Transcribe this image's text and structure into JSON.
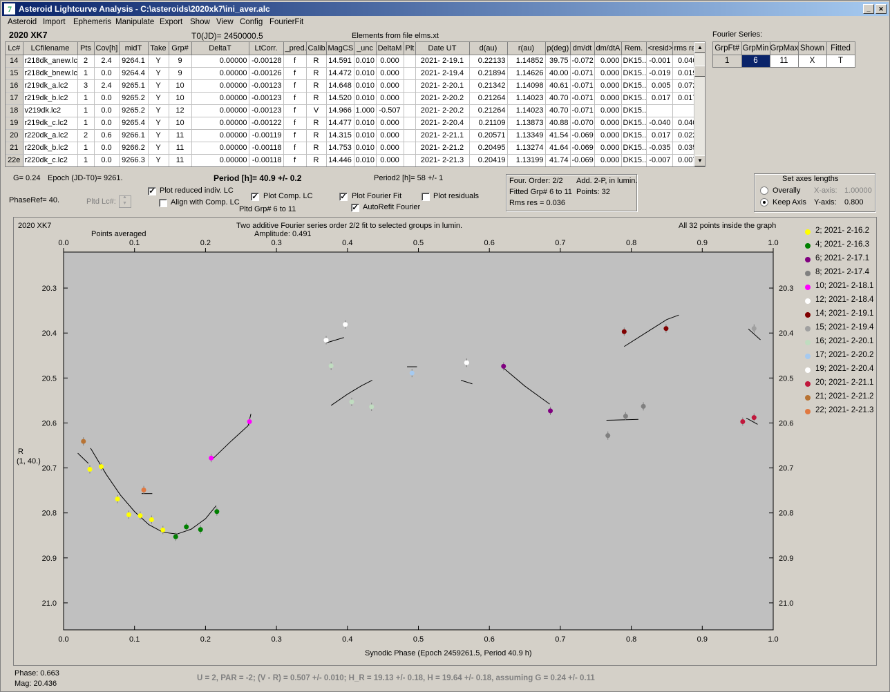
{
  "window": {
    "title": "Asteroid Lightcurve Analysis - C:\\asteroids\\2020xk7\\ini_aver.alc",
    "icon": "app-logo-icon"
  },
  "menu": [
    "Asteroid",
    "Import",
    "Ephemeris",
    "Manipulate",
    "Export",
    "Show",
    "View",
    "Config",
    "FourierFit"
  ],
  "header": {
    "asteroid": "2020 XK7",
    "t0": "T0(JD)= 2450000.5",
    "elements": "Elements from file elms.xt",
    "fourier_title": "Fourier Series:"
  },
  "table": {
    "columns": [
      "Lc#",
      "LCfilename",
      "Pts",
      "Cov[h]",
      "midT",
      "Take",
      "Grp#",
      "DeltaT",
      "LtCorr.",
      "_pred.",
      "Calib.",
      "MagCS",
      "_unc",
      "DeltaM",
      "Plt",
      "Date UT",
      "d(au)",
      "r(au)",
      "p(deg)",
      "dm/dt",
      "dm/dtA",
      "Rem.",
      "<resid>",
      "rms res"
    ],
    "rows": [
      [
        "14",
        "r218dk_anew.lc2",
        "2",
        "2.4",
        "9264.1",
        "Y",
        "9",
        "0.00000",
        "-0.00128",
        "f",
        "R",
        "14.591",
        "0.010",
        "0.000",
        "",
        "2021- 2-19.1",
        "0.22133",
        "1.14852",
        "39.75",
        "-0.072",
        "0.000",
        "DK15...",
        "-0.001",
        "0.040"
      ],
      [
        "15",
        "r218dk_bnew.lc2",
        "1",
        "0.0",
        "9264.4",
        "Y",
        "9",
        "0.00000",
        "-0.00126",
        "f",
        "R",
        "14.472",
        "0.010",
        "0.000",
        "",
        "2021- 2-19.4",
        "0.21894",
        "1.14626",
        "40.00",
        "-0.071",
        "0.000",
        "DK15...",
        "-0.019",
        "0.019"
      ],
      [
        "16",
        "r219dk_a.lc2",
        "3",
        "2.4",
        "9265.1",
        "Y",
        "10",
        "0.00000",
        "-0.00123",
        "f",
        "R",
        "14.648",
        "0.010",
        "0.000",
        "",
        "2021- 2-20.1",
        "0.21342",
        "1.14098",
        "40.61",
        "-0.071",
        "0.000",
        "DK15...",
        "0.005",
        "0.072"
      ],
      [
        "17",
        "r219dk_b.lc2",
        "1",
        "0.0",
        "9265.2",
        "Y",
        "10",
        "0.00000",
        "-0.00123",
        "f",
        "R",
        "14.520",
        "0.010",
        "0.000",
        "",
        "2021- 2-20.2",
        "0.21264",
        "1.14023",
        "40.70",
        "-0.071",
        "0.000",
        "DK15...",
        "0.017",
        "0.017"
      ],
      [
        "18",
        "v219dk.lc2",
        "1",
        "0.0",
        "9265.2",
        "Y",
        "12",
        "0.00000",
        "-0.00123",
        "f",
        "V",
        "14.966",
        "1.000",
        "-0.507",
        "",
        "2021- 2-20.2",
        "0.21264",
        "1.14023",
        "40.70",
        "-0.071",
        "0.000",
        "DK15...",
        "",
        ""
      ],
      [
        "19",
        "r219dk_c.lc2",
        "1",
        "0.0",
        "9265.4",
        "Y",
        "10",
        "0.00000",
        "-0.00122",
        "f",
        "R",
        "14.477",
        "0.010",
        "0.000",
        "",
        "2021- 2-20.4",
        "0.21109",
        "1.13873",
        "40.88",
        "-0.070",
        "0.000",
        "DK15...",
        "-0.040",
        "0.040"
      ],
      [
        "20",
        "r220dk_a.lc2",
        "2",
        "0.6",
        "9266.1",
        "Y",
        "11",
        "0.00000",
        "-0.00119",
        "f",
        "R",
        "14.315",
        "0.010",
        "0.000",
        "",
        "2021- 2-21.1",
        "0.20571",
        "1.13349",
        "41.54",
        "-0.069",
        "0.000",
        "DK15...",
        "0.017",
        "0.022"
      ],
      [
        "21",
        "r220dk_b.lc2",
        "1",
        "0.0",
        "9266.2",
        "Y",
        "11",
        "0.00000",
        "-0.00118",
        "f",
        "R",
        "14.753",
        "0.010",
        "0.000",
        "",
        "2021- 2-21.2",
        "0.20495",
        "1.13274",
        "41.64",
        "-0.069",
        "0.000",
        "DK15...",
        "-0.035",
        "0.035"
      ],
      [
        "22e",
        "r220dk_c.lc2",
        "1",
        "0.0",
        "9266.3",
        "Y",
        "11",
        "0.00000",
        "-0.00118",
        "f",
        "R",
        "14.446",
        "0.010",
        "0.000",
        "",
        "2021- 2-21.3",
        "0.20419",
        "1.13199",
        "41.74",
        "-0.069",
        "0.000",
        "DK15...",
        "-0.007",
        "0.007"
      ]
    ]
  },
  "fourier_table": {
    "columns": [
      "GrpFt#",
      "GrpMin",
      "GrpMax",
      "Shown",
      "Fitted"
    ],
    "row": [
      "1",
      "6",
      "11",
      "X",
      "T"
    ]
  },
  "controls": {
    "g": "G= 0.24",
    "epoch": "Epoch (JD-T0)= 9261.",
    "period": "Period [h]= 40.9 +/- 0.2",
    "period2": "Period2 [h]= 58 +/- 1",
    "phaseref": "PhaseRef= 40.",
    "pltd_lc": "Pltd Lc#:",
    "plot_reduced": "Plot reduced indiv. LC",
    "align": "Align with Comp. LC",
    "plot_comp": "Plot Comp. LC",
    "pltd_grp": "Pltd Grp#  6   to    11",
    "plot_fourier": "Plot Fourier Fit",
    "autorefit": "AutoRefit Fourier",
    "plot_residuals": "Plot residuals",
    "checks": {
      "plot_reduced": true,
      "align": false,
      "plot_comp": true,
      "plot_fourier": true,
      "autorefit": true,
      "plot_residuals": false
    }
  },
  "fit_info": {
    "order": "Four. Order:  2/2",
    "add": "Add. 2-P, in lumin.",
    "fitted": "Fitted Grp# 6 to 11",
    "points": "Points: 32",
    "rms": "Rms res     = 0.036"
  },
  "axes_box": {
    "title": "Set axes lengths",
    "overally": "Overally",
    "keep": "Keep Axis",
    "xaxis_label": "X-axis:",
    "xaxis_val": "1.00000",
    "yaxis_label": "Y-axis:",
    "yaxis_val": "0.800",
    "selected": "keep"
  },
  "status": {
    "phase": "Phase:  0.663",
    "mag": "Mag:    20.436",
    "bottom": "U = 2, PAR = -2; (V - R) = 0.507 +/- 0.010; H_R = 19.13 +/- 0.18, H = 19.64 +/- 0.18, assuming G = 0.24 +/- 0.11"
  },
  "chart_data": {
    "type": "scatter",
    "object_label": "2020 XK7",
    "title": "Two additive Fourier series order 2/2 fit to selected groups in lumin.",
    "subtitle": "Amplitude: 0.491",
    "top_left_note": "Points averaged",
    "top_right_note": "All 32 points inside the graph",
    "xlabel": "Synodic Phase (Epoch 2459261.5, Period 40.9 h)",
    "ylabel": "R",
    "ylabel2": "(1, 40.)",
    "xlim": [
      0,
      1
    ],
    "ylim": [
      21.06,
      20.22
    ],
    "xticks": [
      "0.0",
      "0.1",
      "0.2",
      "0.3",
      "0.4",
      "0.5",
      "0.6",
      "0.7",
      "0.8",
      "0.9",
      "1.0"
    ],
    "yticks": [
      "20.3",
      "20.4",
      "20.5",
      "20.6",
      "20.7",
      "20.8",
      "20.9",
      "21.0"
    ],
    "series": [
      {
        "name": "2; 2021- 2-16.2",
        "color": "#ffff00",
        "points": [
          [
            0.037,
            20.703
          ],
          [
            0.053,
            20.697
          ],
          [
            0.076,
            20.769
          ],
          [
            0.092,
            20.804
          ],
          [
            0.108,
            20.806
          ],
          [
            0.124,
            20.815
          ],
          [
            0.14,
            20.838
          ]
        ]
      },
      {
        "name": "4; 2021- 2-16.3",
        "color": "#008000",
        "points": [
          [
            0.158,
            20.853
          ],
          [
            0.173,
            20.831
          ],
          [
            0.193,
            20.837
          ],
          [
            0.216,
            20.797
          ]
        ]
      },
      {
        "name": "6; 2021- 2-17.1",
        "color": "#800080",
        "points": [
          [
            0.62,
            20.474
          ],
          [
            0.686,
            20.573
          ]
        ]
      },
      {
        "name": "8; 2021- 2-17.4",
        "color": "#808080",
        "points": [
          [
            0.767,
            20.628
          ],
          [
            0.792,
            20.585
          ],
          [
            0.817,
            20.563
          ]
        ]
      },
      {
        "name": "10; 2021- 2-18.1",
        "color": "#ff00ff",
        "points": [
          [
            0.208,
            20.678
          ],
          [
            0.262,
            20.597
          ]
        ]
      },
      {
        "name": "12; 2021- 2-18.4",
        "color": "#ffffff",
        "points": [
          [
            0.37,
            20.416
          ],
          [
            0.397,
            20.381
          ],
          [
            0.568,
            20.466
          ]
        ]
      },
      {
        "name": "14; 2021- 2-19.1",
        "color": "#800000",
        "points": [
          [
            0.79,
            20.397
          ],
          [
            0.849,
            20.39
          ]
        ]
      },
      {
        "name": "15; 2021- 2-19.4",
        "color": "#a0a0a0",
        "points": [
          [
            0.973,
            20.39
          ]
        ]
      },
      {
        "name": "16; 2021- 2-20.1",
        "color": "#c0dcc0",
        "points": [
          [
            0.377,
            20.473
          ],
          [
            0.406,
            20.553
          ],
          [
            0.434,
            20.564
          ]
        ]
      },
      {
        "name": "17; 2021- 2-20.2",
        "color": "#a6caf0",
        "points": [
          [
            0.491,
            20.489
          ]
        ]
      },
      {
        "name": "19; 2021- 2-20.4",
        "color": "#ffffff",
        "points": [
          [
            0.568,
            20.466
          ]
        ]
      },
      {
        "name": "20; 2021- 2-21.1",
        "color": "#c0183c",
        "points": [
          [
            0.957,
            20.597
          ],
          [
            0.973,
            20.588
          ]
        ]
      },
      {
        "name": "21; 2021- 2-21.2",
        "color": "#b87333",
        "points": [
          [
            0.028,
            20.641
          ]
        ]
      },
      {
        "name": "22; 2021- 2-21.3",
        "color": "#e07840",
        "points": [
          [
            0.113,
            20.749
          ]
        ]
      }
    ],
    "fit_segments": [
      [
        [
          0.02,
          20.667
        ],
        [
          0.035,
          20.69
        ]
      ],
      [
        [
          0.038,
          20.656
        ],
        [
          0.06,
          20.714
        ],
        [
          0.08,
          20.76
        ],
        [
          0.1,
          20.797
        ],
        [
          0.12,
          20.826
        ],
        [
          0.14,
          20.843
        ],
        [
          0.16,
          20.847
        ],
        [
          0.18,
          20.836
        ],
        [
          0.2,
          20.813
        ],
        [
          0.215,
          20.784
        ]
      ],
      [
        [
          0.21,
          20.68
        ],
        [
          0.235,
          20.642
        ],
        [
          0.26,
          20.606
        ],
        [
          0.264,
          20.58
        ]
      ],
      [
        [
          0.37,
          20.422
        ],
        [
          0.395,
          20.41
        ]
      ],
      [
        [
          0.377,
          20.561
        ],
        [
          0.4,
          20.536
        ],
        [
          0.42,
          20.517
        ],
        [
          0.435,
          20.505
        ]
      ],
      [
        [
          0.484,
          20.475
        ],
        [
          0.498,
          20.475
        ]
      ],
      [
        [
          0.56,
          20.505
        ],
        [
          0.576,
          20.513
        ]
      ],
      [
        [
          0.62,
          20.478
        ],
        [
          0.65,
          20.518
        ],
        [
          0.685,
          20.558
        ]
      ],
      [
        [
          0.765,
          20.594
        ],
        [
          0.81,
          20.592
        ]
      ],
      [
        [
          0.79,
          20.43
        ],
        [
          0.82,
          20.4
        ],
        [
          0.85,
          20.37
        ],
        [
          0.867,
          20.36
        ]
      ],
      [
        [
          0.962,
          20.589
        ],
        [
          0.978,
          20.603
        ]
      ],
      [
        [
          0.965,
          20.391
        ],
        [
          0.982,
          20.415
        ]
      ],
      [
        [
          0.11,
          20.757
        ],
        [
          0.125,
          20.757
        ]
      ]
    ]
  }
}
